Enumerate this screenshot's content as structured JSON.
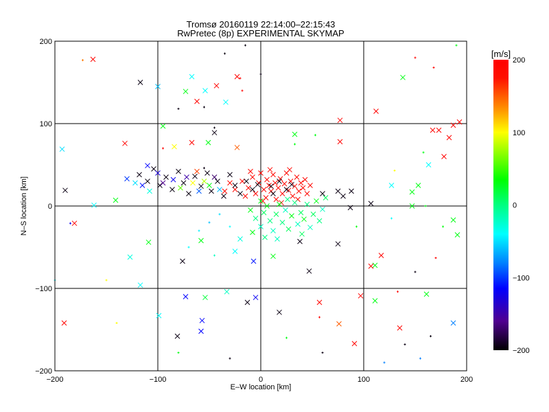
{
  "chart_data": {
    "type": "scatter",
    "title": "Tromsø 20160119 22:14:00–22:15:43",
    "subtitle": "RwPretec (8p) EXPERIMENTAL SKYMAP",
    "xlabel": "E–W location [km]",
    "ylabel": "N–S location [km]",
    "xlim": [
      -200,
      200
    ],
    "ylim": [
      -200,
      200
    ],
    "xticks": [
      -200,
      -100,
      0,
      100,
      200
    ],
    "yticks": [
      -200,
      -100,
      0,
      100,
      200
    ],
    "xtick_labels": [
      "−200",
      "−100",
      "0",
      "100",
      "200"
    ],
    "ytick_labels": [
      "−200",
      "−100",
      "0",
      "100",
      "200"
    ],
    "grid": true,
    "colorbar": {
      "label": "[m/s]",
      "range": [
        -200,
        200
      ],
      "ticks": [
        200,
        100,
        0,
        -100,
        -200
      ],
      "tick_labels": [
        "200",
        "100",
        "0",
        "−100",
        "−200"
      ],
      "colormap": [
        [
          200,
          "#ff0000"
        ],
        [
          175,
          "#ff1000"
        ],
        [
          130,
          "#ff9900"
        ],
        [
          100,
          "#ffff00"
        ],
        [
          35,
          "#00ff00"
        ],
        [
          0,
          "#00ff80"
        ],
        [
          -40,
          "#00ffff"
        ],
        [
          -80,
          "#0080ff"
        ],
        [
          -115,
          "#0000ff"
        ],
        [
          -160,
          "#500090"
        ],
        [
          -200,
          "#000000"
        ]
      ]
    },
    "point_format": [
      "x_km",
      "y_km",
      "velocity_m_s",
      "marker"
    ],
    "points": [
      [
        -163,
        178,
        195,
        "x"
      ],
      [
        -117,
        150,
        -195,
        "x"
      ],
      [
        -100,
        145,
        -60,
        "x"
      ],
      [
        -173,
        177,
        140,
        "+"
      ],
      [
        -132,
        76,
        195,
        "x"
      ],
      [
        -193,
        69,
        -50,
        "x"
      ],
      [
        -190,
        19,
        -195,
        "x"
      ],
      [
        -181,
        -21,
        195,
        "x"
      ],
      [
        -185,
        -21,
        -120,
        "+"
      ],
      [
        -162,
        1,
        -40,
        "x"
      ],
      [
        -127,
        -62,
        -30,
        "x"
      ],
      [
        -109,
        -44,
        30,
        "x"
      ],
      [
        -191,
        -142,
        195,
        "x"
      ],
      [
        -117,
        -96,
        -40,
        "x"
      ],
      [
        -99,
        -133,
        -40,
        "x"
      ],
      [
        -81,
        -158,
        -195,
        "x"
      ],
      [
        -58,
        -152,
        -115,
        "x"
      ],
      [
        -57,
        -139,
        -115,
        "x"
      ],
      [
        -73,
        -110,
        -115,
        "x"
      ],
      [
        -54,
        -111,
        20,
        "x"
      ],
      [
        -33,
        -104,
        -20,
        "x"
      ],
      [
        -13,
        -117,
        -195,
        "x"
      ],
      [
        -5,
        -111,
        -120,
        "x"
      ],
      [
        18,
        -129,
        -195,
        "x"
      ],
      [
        -76,
        -67,
        -195,
        "x"
      ],
      [
        -58,
        -42,
        30,
        "x"
      ],
      [
        -7,
        -67,
        -110,
        "x"
      ],
      [
        12,
        -61,
        30,
        "x"
      ],
      [
        38,
        -43,
        -195,
        "x"
      ],
      [
        75,
        -46,
        -195,
        "x"
      ],
      [
        47,
        -79,
        -195,
        "x"
      ],
      [
        57,
        -117,
        195,
        "x"
      ],
      [
        57,
        -135,
        195,
        "+"
      ],
      [
        76,
        -143,
        150,
        "x"
      ],
      [
        91,
        -167,
        195,
        "x"
      ],
      [
        97,
        -109,
        195,
        "x"
      ],
      [
        111,
        -115,
        30,
        "x"
      ],
      [
        133,
        -104,
        195,
        "+"
      ],
      [
        135,
        -148,
        195,
        "x"
      ],
      [
        187,
        -142,
        -80,
        "x"
      ],
      [
        161,
        -107,
        30,
        "x"
      ],
      [
        111,
        -72,
        30,
        "x"
      ],
      [
        107,
        -73,
        195,
        "x"
      ],
      [
        117,
        -60,
        195,
        "x"
      ],
      [
        87,
        -2,
        -195,
        "x"
      ],
      [
        93,
        -25,
        30,
        "+"
      ],
      [
        107,
        3,
        -195,
        "x"
      ],
      [
        127,
        -15,
        -40,
        "+"
      ],
      [
        147,
        0,
        30,
        "x"
      ],
      [
        160,
        0,
        30,
        "+"
      ],
      [
        187,
        -17,
        30,
        "x"
      ],
      [
        177,
        -25,
        30,
        "+"
      ],
      [
        191,
        -35,
        30,
        "x"
      ],
      [
        147,
        17,
        30,
        "x"
      ],
      [
        153,
        25,
        30,
        "x"
      ],
      [
        127,
        25,
        -40,
        "x"
      ],
      [
        130,
        43,
        100,
        "+"
      ],
      [
        163,
        50,
        -40,
        "x"
      ],
      [
        158,
        65,
        30,
        "+"
      ],
      [
        167,
        92,
        195,
        "x"
      ],
      [
        173,
        92,
        195,
        "x"
      ],
      [
        183,
        83,
        195,
        "x"
      ],
      [
        187,
        98,
        195,
        "x"
      ],
      [
        193,
        102,
        195,
        "x"
      ],
      [
        178,
        60,
        195,
        "x"
      ],
      [
        112,
        115,
        195,
        "x"
      ],
      [
        77,
        104,
        195,
        "x"
      ],
      [
        138,
        156,
        30,
        "x"
      ],
      [
        77,
        78,
        195,
        "x"
      ],
      [
        53,
        86,
        30,
        "+"
      ],
      [
        33,
        87,
        30,
        "x"
      ],
      [
        33,
        75,
        30,
        "+"
      ],
      [
        -23,
        157,
        195,
        "x"
      ],
      [
        -34,
        126,
        -40,
        "x"
      ],
      [
        -43,
        146,
        195,
        "x"
      ],
      [
        -54,
        140,
        -40,
        "x"
      ],
      [
        -73,
        139,
        30,
        "x"
      ],
      [
        -62,
        127,
        195,
        "x"
      ],
      [
        -67,
        157,
        -40,
        "x"
      ],
      [
        -95,
        97,
        30,
        "x"
      ],
      [
        -67,
        77,
        195,
        "x"
      ],
      [
        -84,
        72,
        100,
        "x"
      ],
      [
        -95,
        70,
        195,
        "+"
      ],
      [
        -110,
        49,
        -115,
        "x"
      ],
      [
        -141,
        7,
        30,
        "x"
      ],
      [
        -23,
        71,
        150,
        "x"
      ],
      [
        -45,
        89,
        -195,
        "x"
      ],
      [
        -51,
        77,
        30,
        "x"
      ],
      [
        -55,
        46,
        -195,
        "+"
      ],
      [
        -35,
        185,
        -195,
        "+"
      ],
      [
        -15,
        195,
        -195,
        "+"
      ],
      [
        -20,
        155,
        195,
        "+"
      ],
      [
        -18,
        140,
        195,
        "+"
      ],
      [
        0,
        160,
        -195,
        "+"
      ],
      [
        -45,
        95,
        -195,
        "+"
      ],
      [
        -55,
        120,
        -195,
        "+"
      ],
      [
        -80,
        118,
        -195,
        "+"
      ],
      [
        150,
        180,
        195,
        "+"
      ],
      [
        168,
        168,
        195,
        "+"
      ],
      [
        190,
        195,
        30,
        "+"
      ],
      [
        120,
        -190,
        -80,
        "+"
      ],
      [
        155,
        -185,
        -80,
        "+"
      ],
      [
        140,
        -168,
        -195,
        "+"
      ],
      [
        165,
        -158,
        -195,
        "+"
      ],
      [
        -140,
        -142,
        100,
        "+"
      ],
      [
        -80,
        -178,
        30,
        "+"
      ],
      [
        -30,
        -185,
        -195,
        "+"
      ],
      [
        25,
        -160,
        30,
        "+"
      ],
      [
        60,
        -178,
        -195,
        "+"
      ],
      [
        150,
        -80,
        -195,
        "+"
      ],
      [
        170,
        -63,
        195,
        "+"
      ],
      [
        -150,
        -90,
        100,
        "+"
      ],
      [
        -200,
        -90,
        -40,
        "+"
      ],
      [
        -18,
        30,
        190,
        "x"
      ],
      [
        -12,
        22,
        190,
        "x"
      ],
      [
        -8,
        35,
        190,
        "x"
      ],
      [
        -5,
        15,
        190,
        "x"
      ],
      [
        -2,
        28,
        190,
        "x"
      ],
      [
        0,
        40,
        190,
        "x"
      ],
      [
        3,
        20,
        190,
        "x"
      ],
      [
        5,
        10,
        190,
        "x"
      ],
      [
        6,
        32,
        190,
        "x"
      ],
      [
        8,
        25,
        190,
        "x"
      ],
      [
        10,
        18,
        190,
        "x"
      ],
      [
        12,
        38,
        190,
        "x"
      ],
      [
        14,
        28,
        190,
        "x"
      ],
      [
        15,
        8,
        190,
        "x"
      ],
      [
        17,
        22,
        190,
        "x"
      ],
      [
        19,
        33,
        190,
        "x"
      ],
      [
        21,
        15,
        190,
        "x"
      ],
      [
        23,
        27,
        190,
        "x"
      ],
      [
        25,
        40,
        190,
        "x"
      ],
      [
        27,
        19,
        190,
        "x"
      ],
      [
        29,
        30,
        190,
        "x"
      ],
      [
        31,
        12,
        190,
        "x"
      ],
      [
        33,
        24,
        190,
        "x"
      ],
      [
        35,
        35,
        190,
        "x"
      ],
      [
        37,
        18,
        190,
        "x"
      ],
      [
        39,
        28,
        190,
        "x"
      ],
      [
        41,
        22,
        190,
        "x"
      ],
      [
        43,
        32,
        190,
        "x"
      ],
      [
        45,
        15,
        190,
        "x"
      ],
      [
        48,
        25,
        190,
        "x"
      ],
      [
        -15,
        12,
        190,
        "x"
      ],
      [
        -10,
        42,
        190,
        "x"
      ],
      [
        2,
        6,
        190,
        "x"
      ],
      [
        9,
        44,
        190,
        "x"
      ],
      [
        20,
        4,
        190,
        "x"
      ],
      [
        28,
        44,
        190,
        "x"
      ],
      [
        36,
        8,
        190,
        "x"
      ],
      [
        -25,
        20,
        190,
        "x"
      ],
      [
        -30,
        28,
        190,
        "x"
      ],
      [
        -35,
        18,
        190,
        "x"
      ],
      [
        -118,
        38,
        -195,
        "x"
      ],
      [
        -110,
        30,
        -195,
        "x"
      ],
      [
        -104,
        45,
        -195,
        "x"
      ],
      [
        -98,
        25,
        -195,
        "x"
      ],
      [
        -92,
        35,
        -195,
        "x"
      ],
      [
        -86,
        20,
        -195,
        "x"
      ],
      [
        -80,
        42,
        -195,
        "x"
      ],
      [
        -75,
        28,
        -195,
        "x"
      ],
      [
        -70,
        15,
        -195,
        "x"
      ],
      [
        -64,
        36,
        -195,
        "x"
      ],
      [
        -58,
        24,
        -195,
        "x"
      ],
      [
        -52,
        40,
        -195,
        "x"
      ],
      [
        -48,
        18,
        -195,
        "x"
      ],
      [
        -42,
        30,
        -195,
        "x"
      ],
      [
        -36,
        12,
        -195,
        "x"
      ],
      [
        -30,
        38,
        -195,
        "x"
      ],
      [
        -25,
        25,
        -195,
        "x"
      ],
      [
        -20,
        15,
        -195,
        "x"
      ],
      [
        -14,
        30,
        -195,
        "x"
      ],
      [
        -8,
        20,
        -195,
        "x"
      ],
      [
        -3,
        26,
        -195,
        "x"
      ],
      [
        10,
        24,
        -195,
        "x"
      ],
      [
        18,
        30,
        -195,
        "x"
      ],
      [
        25,
        20,
        -195,
        "x"
      ],
      [
        12,
        15,
        -195,
        "x"
      ],
      [
        30,
        26,
        -195,
        "x"
      ],
      [
        60,
        15,
        -195,
        "x"
      ],
      [
        75,
        18,
        -195,
        "x"
      ],
      [
        80,
        12,
        -195,
        "x"
      ],
      [
        88,
        18,
        -195,
        "x"
      ],
      [
        -115,
        25,
        -110,
        "x"
      ],
      [
        -100,
        40,
        -130,
        "x"
      ],
      [
        -95,
        28,
        -160,
        "x"
      ],
      [
        -85,
        32,
        -120,
        "x"
      ],
      [
        -78,
        22,
        60,
        "x"
      ],
      [
        -72,
        35,
        -150,
        "x"
      ],
      [
        -66,
        28,
        100,
        "x"
      ],
      [
        -60,
        18,
        -90,
        "x"
      ],
      [
        -55,
        30,
        80,
        "x"
      ],
      [
        -50,
        25,
        30,
        "x"
      ],
      [
        -45,
        35,
        -170,
        "x"
      ],
      [
        -40,
        20,
        -60,
        "x"
      ],
      [
        -108,
        18,
        -30,
        "x"
      ],
      [
        -122,
        28,
        -50,
        "x"
      ],
      [
        -130,
        33,
        -100,
        "x"
      ],
      [
        -62,
        42,
        160,
        "x"
      ],
      [
        -10,
        -5,
        30,
        "x"
      ],
      [
        -5,
        -15,
        0,
        "x"
      ],
      [
        0,
        -25,
        -20,
        "x"
      ],
      [
        3,
        -8,
        10,
        "x"
      ],
      [
        6,
        0,
        30,
        "x"
      ],
      [
        9,
        -18,
        0,
        "x"
      ],
      [
        12,
        -30,
        -20,
        "x"
      ],
      [
        15,
        -10,
        10,
        "x"
      ],
      [
        18,
        2,
        30,
        "x"
      ],
      [
        21,
        -20,
        0,
        "x"
      ],
      [
        24,
        -5,
        -20,
        "x"
      ],
      [
        27,
        -28,
        10,
        "x"
      ],
      [
        30,
        -12,
        30,
        "x"
      ],
      [
        33,
        4,
        0,
        "x"
      ],
      [
        36,
        -22,
        -20,
        "x"
      ],
      [
        39,
        -8,
        10,
        "x"
      ],
      [
        42,
        -16,
        30,
        "x"
      ],
      [
        45,
        2,
        0,
        "x"
      ],
      [
        48,
        -26,
        -20,
        "x"
      ],
      [
        51,
        -10,
        10,
        "x"
      ],
      [
        54,
        6,
        30,
        "x"
      ],
      [
        57,
        -18,
        0,
        "x"
      ],
      [
        60,
        -4,
        -20,
        "x"
      ],
      [
        63,
        10,
        10,
        "x"
      ],
      [
        -8,
        -32,
        30,
        "x"
      ],
      [
        4,
        -38,
        0,
        "x"
      ],
      [
        16,
        -40,
        -20,
        "x"
      ],
      [
        40,
        -34,
        10,
        "x"
      ],
      [
        0,
        6,
        30,
        "x"
      ],
      [
        26,
        8,
        0,
        "x"
      ],
      [
        -40,
        -10,
        -50,
        "+"
      ],
      [
        -30,
        -25,
        -40,
        "+"
      ],
      [
        -50,
        -20,
        -60,
        "+"
      ],
      [
        -20,
        -40,
        -30,
        "x"
      ],
      [
        -60,
        -30,
        -45,
        "+"
      ],
      [
        -25,
        -55,
        -40,
        "x"
      ],
      [
        -45,
        -60,
        -20,
        "+"
      ],
      [
        -70,
        -50,
        -40,
        "+"
      ]
    ]
  }
}
